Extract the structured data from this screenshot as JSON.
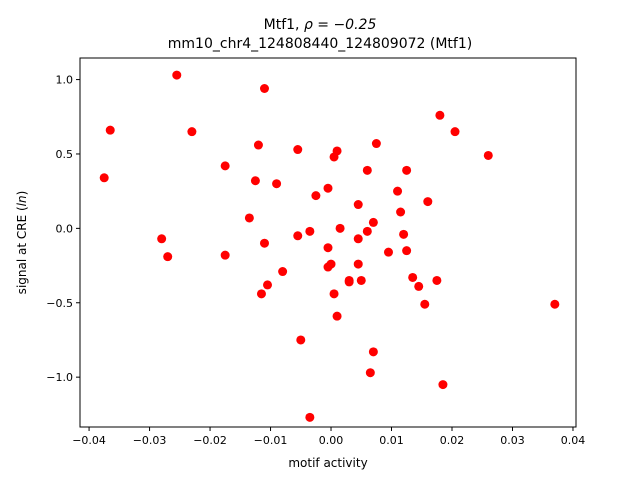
{
  "chart_data": {
    "type": "scatter",
    "title_line1_prefix": "Mtf1, ",
    "title_line1_rho": "ρ = −0.25",
    "title_line2": "mm10_chr4_124808440_124809072 (Mtf1)",
    "xlabel": "motif activity",
    "ylabel_prefix": "signal at CRE (",
    "ylabel_italic": "ln",
    "ylabel_suffix": ")",
    "xlim": [
      -0.0415,
      0.0405
    ],
    "ylim": [
      -1.335,
      1.145
    ],
    "xticks": [
      -0.04,
      -0.03,
      -0.02,
      -0.01,
      0.0,
      0.01,
      0.02,
      0.03,
      0.04
    ],
    "xtick_labels": [
      "−0.04",
      "−0.03",
      "−0.02",
      "−0.01",
      "0.00",
      "0.01",
      "0.02",
      "0.03",
      "0.04"
    ],
    "yticks": [
      -1.0,
      -0.5,
      0.0,
      0.5,
      1.0
    ],
    "ytick_labels": [
      "−1.0",
      "−0.5",
      "0.0",
      "0.5",
      "1.0"
    ],
    "grid": false,
    "marker_color": "#ff0000",
    "points": [
      [
        -0.0375,
        0.34
      ],
      [
        -0.0365,
        0.66
      ],
      [
        -0.028,
        -0.07
      ],
      [
        -0.027,
        -0.19
      ],
      [
        -0.0255,
        1.03
      ],
      [
        -0.023,
        0.65
      ],
      [
        -0.0175,
        0.42
      ],
      [
        -0.0175,
        -0.18
      ],
      [
        -0.0135,
        0.07
      ],
      [
        -0.0125,
        0.32
      ],
      [
        -0.012,
        0.56
      ],
      [
        -0.0115,
        -0.44
      ],
      [
        -0.011,
        0.94
      ],
      [
        -0.011,
        -0.1
      ],
      [
        -0.0105,
        -0.38
      ],
      [
        -0.009,
        0.3
      ],
      [
        -0.008,
        -0.29
      ],
      [
        -0.0055,
        0.53
      ],
      [
        -0.0055,
        -0.05
      ],
      [
        -0.005,
        -0.75
      ],
      [
        -0.0035,
        -0.02
      ],
      [
        -0.0035,
        -1.27
      ],
      [
        -0.0025,
        0.22
      ],
      [
        -0.0005,
        0.27
      ],
      [
        -0.0005,
        -0.13
      ],
      [
        -0.0005,
        -0.26
      ],
      [
        0.0,
        -0.24
      ],
      [
        0.0005,
        0.48
      ],
      [
        0.0005,
        -0.44
      ],
      [
        0.001,
        0.52
      ],
      [
        0.001,
        -0.59
      ],
      [
        0.0015,
        0.0
      ],
      [
        0.003,
        -0.35
      ],
      [
        0.003,
        -0.36
      ],
      [
        0.0045,
        0.16
      ],
      [
        0.0045,
        -0.07
      ],
      [
        0.0045,
        -0.24
      ],
      [
        0.005,
        -0.35
      ],
      [
        0.006,
        0.39
      ],
      [
        0.006,
        -0.02
      ],
      [
        0.0065,
        -0.97
      ],
      [
        0.007,
        0.04
      ],
      [
        0.007,
        -0.83
      ],
      [
        0.0075,
        0.57
      ],
      [
        0.0095,
        -0.16
      ],
      [
        0.011,
        0.25
      ],
      [
        0.0115,
        0.11
      ],
      [
        0.012,
        -0.04
      ],
      [
        0.0125,
        0.39
      ],
      [
        0.0125,
        -0.15
      ],
      [
        0.0135,
        -0.33
      ],
      [
        0.0145,
        -0.39
      ],
      [
        0.0155,
        -0.51
      ],
      [
        0.016,
        0.18
      ],
      [
        0.0175,
        -0.35
      ],
      [
        0.018,
        0.76
      ],
      [
        0.0185,
        -1.05
      ],
      [
        0.0205,
        0.65
      ],
      [
        0.026,
        0.49
      ],
      [
        0.037,
        -0.51
      ]
    ]
  }
}
